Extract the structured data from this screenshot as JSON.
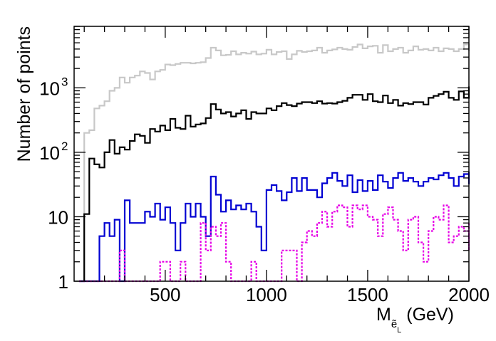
{
  "chart_data": {
    "type": "line",
    "title": "",
    "xlabel": "M",
    "xlabel_sub": "ẽ",
    "xlabel_subsub": "L",
    "xlabel_unit": " (GeV)",
    "ylabel": "Number of points",
    "xlim": [
      50,
      2000
    ],
    "ylim": [
      1,
      9000
    ],
    "yscale": "log",
    "x_ticks": [
      {
        "value": 500,
        "label": "500"
      },
      {
        "value": 1000,
        "label": "1000"
      },
      {
        "value": 1500,
        "label": "1500"
      },
      {
        "value": 2000,
        "label": "2000"
      }
    ],
    "y_ticks": [
      {
        "value": 1,
        "label": "1"
      },
      {
        "value": 10,
        "label": "10"
      },
      {
        "value": 100,
        "label": "10",
        "exponent": "2"
      },
      {
        "value": 1000,
        "label": "10",
        "exponent": "3"
      }
    ],
    "grid": false,
    "legend": "none",
    "bin_edges_start": 75,
    "bin_width": 25,
    "series": [
      {
        "color": "#c8c8c8",
        "dash": "solid",
        "values": [
          1,
          200,
          220,
          480,
          530,
          620,
          900,
          1000,
          1450,
          1200,
          1450,
          1550,
          1800,
          1700,
          1350,
          1800,
          1900,
          2300,
          2250,
          2350,
          2450,
          2450,
          2400,
          2450,
          2500,
          2900,
          4200,
          3800,
          3200,
          3250,
          3700,
          3300,
          3500,
          3400,
          3650,
          3300,
          3400,
          3900,
          3300,
          3600,
          3700,
          2800,
          3300,
          3750,
          3600,
          3700,
          3800,
          4200,
          3500,
          3800,
          3950,
          4200,
          4000,
          3900,
          4300,
          4700,
          4100,
          4400,
          4500,
          3500,
          4600,
          3700,
          4000,
          4200,
          3500,
          3800,
          4400,
          3900,
          4000,
          3800,
          4200,
          3700,
          4100,
          4000,
          3700,
          4000,
          4700,
          3800,
          4200,
          3700
        ]
      },
      {
        "color": "#000000",
        "dash": "solid",
        "values": [
          1,
          11,
          80,
          65,
          58,
          100,
          155,
          95,
          120,
          110,
          150,
          190,
          180,
          140,
          230,
          210,
          260,
          220,
          330,
          240,
          230,
          370,
          250,
          270,
          280,
          340,
          560,
          460,
          400,
          420,
          360,
          400,
          450,
          330,
          420,
          400,
          400,
          480,
          450,
          520,
          580,
          540,
          520,
          570,
          600,
          600,
          580,
          620,
          570,
          580,
          570,
          600,
          630,
          700,
          780,
          780,
          650,
          800,
          620,
          600,
          760,
          580,
          650,
          530,
          580,
          560,
          600,
          600,
          550,
          700,
          750,
          800,
          870,
          700,
          650,
          880,
          700,
          870,
          1050,
          700
        ]
      },
      {
        "color": "#0000d2",
        "dash": "solid",
        "values": [
          1,
          1,
          1,
          1,
          5,
          8,
          5,
          9,
          1,
          18,
          8,
          8,
          8,
          12,
          10,
          16,
          9,
          14,
          8,
          3,
          8,
          16,
          10,
          16,
          10,
          5,
          42,
          22,
          12,
          18,
          13,
          15,
          13,
          16,
          12,
          7,
          3,
          26,
          31,
          25,
          18,
          24,
          40,
          25,
          40,
          26,
          26,
          20,
          33,
          40,
          48,
          36,
          30,
          44,
          24,
          37,
          25,
          36,
          26,
          44,
          35,
          28,
          40,
          48,
          36,
          40,
          35,
          30,
          35,
          40,
          38,
          44,
          48,
          40,
          30,
          42,
          46,
          38,
          50,
          32
        ]
      },
      {
        "color": "#e600e6",
        "dash": "dotted",
        "values": [
          1,
          1,
          1,
          1,
          1,
          1,
          1,
          1,
          3,
          1,
          1,
          1,
          1,
          1,
          1,
          1,
          2,
          2,
          1,
          1,
          2,
          1,
          1,
          1,
          8,
          3,
          7,
          5,
          8,
          2,
          1,
          1,
          1,
          1,
          2,
          1,
          1,
          1,
          1,
          1,
          3,
          3,
          3,
          1,
          4,
          6,
          5,
          8,
          12,
          7,
          12,
          15,
          14,
          7,
          15,
          13,
          15,
          10,
          9,
          5,
          11,
          14,
          9,
          6,
          3,
          9,
          10,
          4,
          2,
          6,
          10,
          9,
          15,
          4,
          5,
          7,
          6,
          5,
          3,
          8
        ]
      }
    ]
  }
}
